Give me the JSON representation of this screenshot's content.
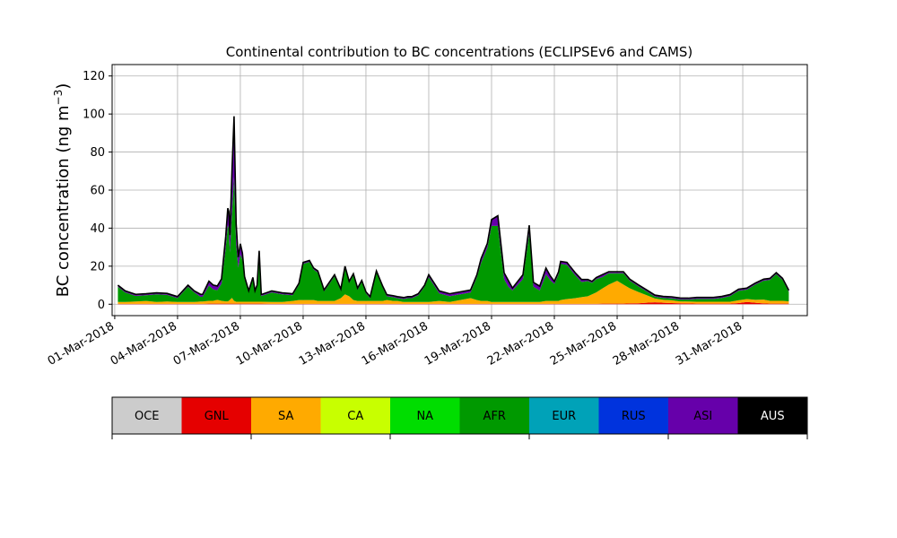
{
  "chart_data": {
    "type": "area",
    "title": "Continental contribution to BC concentrations (ECLIPSEv6 and CAMS)",
    "ylabel_text": "BC concentration (ng m",
    "ylabel_exp": "−3",
    "ylabel_close": ")",
    "ylim": [
      -6,
      126
    ],
    "yticks": [
      0,
      20,
      40,
      60,
      80,
      100,
      120
    ],
    "xlim": [
      "2018-02-28T21:00",
      "2018-04-03T02:00"
    ],
    "xticks": [
      "01-Mar-2018",
      "04-Mar-2018",
      "07-Mar-2018",
      "10-Mar-2018",
      "13-Mar-2018",
      "16-Mar-2018",
      "19-Mar-2018",
      "22-Mar-2018",
      "25-Mar-2018",
      "28-Mar-2018",
      "31-Mar-2018"
    ],
    "grid": true,
    "x_day_offsets": [
      0.15,
      0.5,
      1.0,
      1.5,
      2.0,
      2.5,
      3.0,
      3.5,
      3.8,
      4.1,
      4.2,
      4.5,
      4.7,
      4.9,
      5.1,
      5.3,
      5.4,
      5.45,
      5.5,
      5.6,
      5.7,
      5.8,
      5.9,
      6.0,
      6.1,
      6.2,
      6.4,
      6.6,
      6.7,
      6.8,
      6.9,
      7.0,
      7.5,
      8.0,
      8.5,
      8.8,
      9.0,
      9.3,
      9.5,
      9.7,
      10.0,
      10.5,
      10.8,
      11.0,
      11.2,
      11.4,
      11.6,
      11.8,
      12.0,
      12.2,
      12.5,
      12.8,
      13.0,
      13.3,
      13.5,
      13.8,
      14.0,
      14.2,
      14.5,
      14.8,
      15.0,
      15.5,
      16.0,
      16.5,
      17.0,
      17.3,
      17.5,
      17.8,
      18.0,
      18.3,
      18.6,
      18.8,
      19.0,
      19.5,
      19.8,
      20.0,
      20.3,
      20.6,
      20.8,
      21.0,
      21.2,
      21.3,
      21.6,
      22.0,
      22.3,
      22.6,
      22.8,
      23.0,
      23.3,
      23.6,
      24.0,
      24.3,
      24.6,
      25.0,
      25.4,
      25.8,
      26.2,
      26.6,
      27.0,
      27.4,
      27.8,
      28.2,
      28.6,
      29.0,
      29.4,
      29.8,
      30.2,
      30.6,
      31.0,
      31.3,
      31.6,
      31.9,
      32.2
    ],
    "series": [
      {
        "name": "GNL",
        "values": [
          0.2,
          0.2,
          0.2,
          0.2,
          0.2,
          0.2,
          0.2,
          0.2,
          0.2,
          0.2,
          0.2,
          0.3,
          0.3,
          0.3,
          0.3,
          0.3,
          0.3,
          0.3,
          0.3,
          0.3,
          0.3,
          0.3,
          0.3,
          0.3,
          0.3,
          0.3,
          0.3,
          0.3,
          0.3,
          0.3,
          0.3,
          0.3,
          0.2,
          0.2,
          0.2,
          0.2,
          0.2,
          0.2,
          0.2,
          0.2,
          0.2,
          0.2,
          0.2,
          0.2,
          0.2,
          0.2,
          0.2,
          0.2,
          0.2,
          0.2,
          0.2,
          0.2,
          0.2,
          0.2,
          0.2,
          0.2,
          0.2,
          0.2,
          0.2,
          0.2,
          0.2,
          0.2,
          0.2,
          0.2,
          0.2,
          0.2,
          0.2,
          0.2,
          0.2,
          0.2,
          0.2,
          0.2,
          0.2,
          0.2,
          0.2,
          0.2,
          0.2,
          0.2,
          0.2,
          0.2,
          0.2,
          0.2,
          0.2,
          0.2,
          0.2,
          0.2,
          0.2,
          0.2,
          0.3,
          0.3,
          0.3,
          0.3,
          0.4,
          0.5,
          0.8,
          1.0,
          0.8,
          0.6,
          0.5,
          0.4,
          0.3,
          0.3,
          0.3,
          0.3,
          0.3,
          0.6,
          1.2,
          0.8,
          0.4,
          0.3,
          0.3,
          0.3,
          0.3
        ]
      },
      {
        "name": "SA",
        "values": [
          1.0,
          1.0,
          1.2,
          1.5,
          1.0,
          1.2,
          1.0,
          1.0,
          1.0,
          1.2,
          1.2,
          1.5,
          1.5,
          2.0,
          1.5,
          1.2,
          1.2,
          1.5,
          2.0,
          3.0,
          1.5,
          1.0,
          1.0,
          1.0,
          1.0,
          1.0,
          1.0,
          1.0,
          1.0,
          1.0,
          1.0,
          1.0,
          1.0,
          1.0,
          1.5,
          2.0,
          2.0,
          2.0,
          2.0,
          1.5,
          1.5,
          1.5,
          3.0,
          5.0,
          4.0,
          2.0,
          1.5,
          1.5,
          1.5,
          1.5,
          1.5,
          1.5,
          2.0,
          1.5,
          1.5,
          1.0,
          1.0,
          1.0,
          1.0,
          1.0,
          1.0,
          1.5,
          1.0,
          2.0,
          3.0,
          2.0,
          1.5,
          1.5,
          1.0,
          1.0,
          1.0,
          1.0,
          1.0,
          1.0,
          1.0,
          1.0,
          1.0,
          1.5,
          1.5,
          1.5,
          1.5,
          2.0,
          2.5,
          3.0,
          3.5,
          4.0,
          5.0,
          6.0,
          8.0,
          10.0,
          12.0,
          10.0,
          8.0,
          6.0,
          4.0,
          2.0,
          1.5,
          1.5,
          1.0,
          1.0,
          1.0,
          1.0,
          1.0,
          1.0,
          1.0,
          1.5,
          1.5,
          1.5,
          2.0,
          1.5,
          1.5,
          1.5,
          1.2
        ]
      },
      {
        "name": "AFR",
        "values": [
          8.0,
          5.0,
          3.0,
          3.0,
          4.0,
          3.5,
          2.0,
          8.0,
          5.0,
          2.5,
          2.5,
          8.0,
          6.0,
          5.0,
          9.0,
          28.0,
          40.0,
          38.0,
          25.0,
          45.0,
          65.0,
          30.0,
          18.0,
          25.0,
          22.0,
          12.0,
          5.0,
          12.0,
          5.0,
          8.0,
          26.0,
          3.0,
          5.0,
          4.0,
          3.0,
          8.0,
          19.0,
          20.0,
          16.0,
          15.0,
          5.0,
          13.0,
          4.0,
          14.0,
          7.0,
          13.0,
          6.0,
          10.0,
          4.0,
          1.5,
          15.0,
          7.0,
          2.0,
          2.0,
          1.5,
          1.5,
          2.0,
          2.0,
          3.5,
          8.0,
          13.0,
          4.0,
          3.0,
          3.0,
          3.0,
          12.0,
          20.0,
          28.0,
          40.0,
          40.0,
          12.0,
          8.0,
          6.0,
          12.0,
          36.0,
          8.0,
          6.0,
          14.0,
          11.0,
          9.0,
          14.0,
          19.0,
          18.0,
          12.0,
          8.0,
          8.0,
          6.0,
          7.0,
          6.0,
          6.0,
          4.0,
          6.0,
          4.0,
          3.0,
          2.0,
          1.0,
          1.0,
          1.0,
          1.0,
          1.0,
          1.5,
          1.5,
          1.5,
          2.0,
          3.0,
          5.0,
          5.0,
          8.0,
          10.0,
          11.0,
          14.0,
          11.0,
          5.0
        ]
      },
      {
        "name": "ASI",
        "values": [
          0.5,
          0.5,
          0.5,
          0.5,
          0.5,
          0.5,
          0.5,
          0.5,
          0.5,
          1.0,
          1.0,
          2.0,
          2.0,
          2.0,
          2.0,
          5.0,
          8.0,
          8.0,
          8.0,
          20.0,
          30.0,
          10.0,
          5.0,
          5.0,
          3.0,
          1.0,
          0.5,
          0.5,
          0.5,
          0.5,
          0.5,
          0.5,
          0.5,
          0.5,
          0.5,
          0.5,
          0.5,
          0.5,
          0.5,
          0.5,
          0.5,
          0.5,
          0.5,
          0.5,
          0.5,
          0.5,
          0.5,
          0.5,
          0.5,
          0.5,
          0.5,
          0.5,
          0.5,
          0.5,
          0.5,
          0.5,
          0.5,
          0.5,
          0.5,
          0.5,
          1.0,
          1.0,
          1.0,
          1.0,
          1.0,
          1.0,
          2.0,
          2.0,
          3.0,
          5.0,
          3.0,
          3.0,
          1.0,
          2.0,
          4.0,
          2.0,
          2.0,
          3.0,
          2.0,
          1.0,
          1.0,
          1.0,
          1.0,
          1.0,
          1.0,
          0.5,
          0.5,
          0.5,
          1.0,
          0.5,
          0.5,
          0.5,
          0.5,
          0.5,
          0.5,
          0.5,
          0.5,
          0.5,
          0.5,
          0.5,
          0.5,
          0.5,
          0.5,
          0.5,
          0.5,
          0.5,
          0.5,
          0.5,
          0.5,
          0.5,
          0.5,
          0.5,
          0.5
        ]
      },
      {
        "name": "AUS",
        "values": [
          0.3,
          0.3,
          0.3,
          0.3,
          0.3,
          0.3,
          0.3,
          0.3,
          0.3,
          0.3,
          0.3,
          0.3,
          0.3,
          0.3,
          0.5,
          1.0,
          1.0,
          1.0,
          1.0,
          2.0,
          2.0,
          1.0,
          0.5,
          0.5,
          0.5,
          0.3,
          0.3,
          0.3,
          0.3,
          0.3,
          0.3,
          0.3,
          0.3,
          0.3,
          0.3,
          0.3,
          0.3,
          0.3,
          0.3,
          0.3,
          0.3,
          0.3,
          0.3,
          0.3,
          0.3,
          0.3,
          0.3,
          0.3,
          0.3,
          0.3,
          0.3,
          0.3,
          0.3,
          0.3,
          0.3,
          0.3,
          0.3,
          0.3,
          0.3,
          0.3,
          0.3,
          0.3,
          0.3,
          0.3,
          0.3,
          0.3,
          0.3,
          0.3,
          0.3,
          0.3,
          0.3,
          0.3,
          0.3,
          0.3,
          0.3,
          0.3,
          0.3,
          0.3,
          0.3,
          0.3,
          0.3,
          0.3,
          0.3,
          0.3,
          0.3,
          0.3,
          0.3,
          0.3,
          0.3,
          0.3,
          0.3,
          0.3,
          0.3,
          0.3,
          0.3,
          0.3,
          0.3,
          0.3,
          0.3,
          0.3,
          0.3,
          0.3,
          0.3,
          0.3,
          0.3,
          0.3,
          0.3,
          0.3,
          0.3,
          0.3,
          0.3,
          0.3,
          0.3
        ]
      }
    ],
    "legend": [
      {
        "label": "OCE",
        "color": "#cccccc",
        "text_color": "#000000"
      },
      {
        "label": "GNL",
        "color": "#e50000",
        "text_color": "#000000"
      },
      {
        "label": "SA",
        "color": "#ffaa00",
        "text_color": "#000000"
      },
      {
        "label": "CA",
        "color": "#c8ff00",
        "text_color": "#000000"
      },
      {
        "label": "NA",
        "color": "#00dd00",
        "text_color": "#000000"
      },
      {
        "label": "AFR",
        "color": "#009900",
        "text_color": "#000000"
      },
      {
        "label": "EUR",
        "color": "#00a2b8",
        "text_color": "#000000"
      },
      {
        "label": "RUS",
        "color": "#0033dd",
        "text_color": "#000000"
      },
      {
        "label": "ASI",
        "color": "#6600aa",
        "text_color": "#000000"
      },
      {
        "label": "AUS",
        "color": "#000000",
        "text_color": "#ffffff"
      }
    ],
    "legend_placement": "bottom colorbar"
  }
}
